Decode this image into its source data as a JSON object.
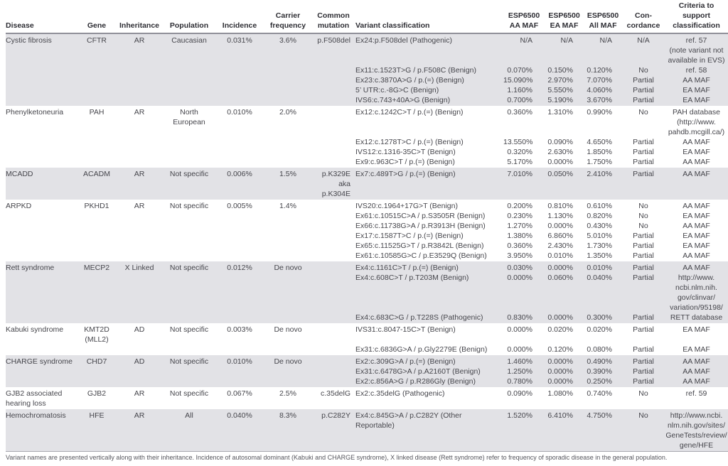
{
  "table": {
    "header": {
      "disease": "Disease",
      "gene": "Gene",
      "inheritance": "Inheritance",
      "population": "Population",
      "incidence": "Incidence",
      "carrier": "Carrier\nfrequency",
      "mutation": "Common\nmutation",
      "variant": "Variant classification",
      "aa": "ESP6500\nAA MAF",
      "ea": "ESP6500\nEA MAF",
      "all": "ESP6500\nAll MAF",
      "concordance": "Con-\ncordance",
      "criteria": "Criteria to\nsupport\nclassification"
    },
    "blocks": [
      {
        "disease": "Cystic fibrosis",
        "gene": "CFTR",
        "inheritance": "AR",
        "population": "Caucasian",
        "incidence": "0.031%",
        "carrier": "3.6%",
        "mutation": "p.F508del",
        "shaded": true,
        "variants": [
          {
            "name": "Ex24:p.F508del (Pathogenic)",
            "aa": "N/A",
            "ea": "N/A",
            "all": "N/A",
            "concordance": "N/A",
            "criteria": "ref. 57\n(note variant not\navailable in EVS)"
          },
          {
            "name": "Ex11:c.1523T>G / p.F508C (Benign)",
            "aa": "0.070%",
            "ea": "0.150%",
            "all": "0.120%",
            "concordance": "No",
            "criteria": "ref. 58"
          },
          {
            "name": "Ex23:c.3870A>G / p.(=) (Benign)",
            "aa": "15.090%",
            "ea": "2.970%",
            "all": "7.070%",
            "concordance": "Partial",
            "criteria": "AA MAF"
          },
          {
            "name": "5’ UTR:c.-8G>C (Benign)",
            "aa": "1.160%",
            "ea": "5.550%",
            "all": "4.060%",
            "concordance": "Partial",
            "criteria": "EA MAF"
          },
          {
            "name": "IVS6:c.743+40A>G (Benign)",
            "aa": "0.700%",
            "ea": "5.190%",
            "all": "3.670%",
            "concordance": "Partial",
            "criteria": "EA MAF"
          }
        ]
      },
      {
        "disease": "Phenylketoneuria",
        "gene": "PAH",
        "inheritance": "AR",
        "population": "North\nEuropean",
        "incidence": "0.010%",
        "carrier": "2.0%",
        "mutation": "",
        "shaded": false,
        "variants": [
          {
            "name": "Ex12:c.1242C>T / p.(=) (Benign)",
            "aa": "0.360%",
            "ea": "1.310%",
            "all": "0.990%",
            "concordance": "No",
            "criteria": "PAH database\n(http://www.\npahdb.mcgill.ca/)"
          },
          {
            "name": "Ex12:c.1278T>C / p.(=) (Benign)",
            "aa": "13.550%",
            "ea": "0.090%",
            "all": "4.650%",
            "concordance": "Partial",
            "criteria": "AA MAF"
          },
          {
            "name": "IVS12:c.1316-35C>T (Benign)",
            "aa": "0.320%",
            "ea": "2.630%",
            "all": "1.850%",
            "concordance": "Partial",
            "criteria": "EA MAF"
          },
          {
            "name": "Ex9:c.963C>T / p.(=) (Benign)",
            "aa": "5.170%",
            "ea": "0.000%",
            "all": "1.750%",
            "concordance": "Partial",
            "criteria": "AA MAF"
          }
        ]
      },
      {
        "disease": "MCADD",
        "gene": "ACADM",
        "inheritance": "AR",
        "population": "Not specific",
        "incidence": "0.006%",
        "carrier": "1.5%",
        "mutation": "p.K329E\naka p.K304E",
        "shaded": true,
        "variants": [
          {
            "name": "Ex7:c.489T>G / p.(=) (Benign)",
            "aa": "7.010%",
            "ea": "0.050%",
            "all": "2.410%",
            "concordance": "Partial",
            "criteria": "AA MAF"
          }
        ]
      },
      {
        "disease": "ARPKD",
        "gene": "PKHD1",
        "inheritance": "AR",
        "population": "Not specific",
        "incidence": "0.005%",
        "carrier": "1.4%",
        "mutation": "",
        "shaded": false,
        "variants": [
          {
            "name": "IVS20:c.1964+17G>T (Benign)",
            "aa": "0.200%",
            "ea": "0.810%",
            "all": "0.610%",
            "concordance": "No",
            "criteria": "AA MAF"
          },
          {
            "name": "Ex61:c.10515C>A / p.S3505R (Benign)",
            "aa": "0.230%",
            "ea": "1.130%",
            "all": "0.820%",
            "concordance": "No",
            "criteria": "EA MAF"
          },
          {
            "name": "Ex66:c.11738G>A / p.R3913H (Benign)",
            "aa": "1.270%",
            "ea": "0.000%",
            "all": "0.430%",
            "concordance": "No",
            "criteria": "AA MAF"
          },
          {
            "name": "Ex17:c.1587T>C / p.(=) (Benign)",
            "aa": "1.380%",
            "ea": "6.860%",
            "all": "5.010%",
            "concordance": "Partial",
            "criteria": "EA MAF"
          },
          {
            "name": "Ex65:c.11525G>T / p.R3842L (Benign)",
            "aa": "0.360%",
            "ea": "2.430%",
            "all": "1.730%",
            "concordance": "Partial",
            "criteria": "EA MAF"
          },
          {
            "name": "Ex61:c.10585G>C / p.E3529Q (Benign)",
            "aa": "3.950%",
            "ea": "0.010%",
            "all": "1.350%",
            "concordance": "Partial",
            "criteria": "AA MAF"
          }
        ]
      },
      {
        "disease": "Rett syndrome",
        "gene": "MECP2",
        "inheritance": "X Linked",
        "population": "Not specific",
        "incidence": "0.012%",
        "carrier": "De novo",
        "mutation": "",
        "shaded": true,
        "variants": [
          {
            "name": "Ex4:c.1161C>T / p.(=) (Benign)",
            "aa": "0.030%",
            "ea": "0.000%",
            "all": "0.010%",
            "concordance": "Partial",
            "criteria": "AA MAF"
          },
          {
            "name": "Ex4:c.608C>T / p.T203M (Benign)",
            "aa": "0.000%",
            "ea": "0.060%",
            "all": "0.040%",
            "concordance": "Partial",
            "criteria": "http://www.\nncbi.nlm.nih.\ngov/clinvar/\nvariation/95198/"
          },
          {
            "name": "Ex4:c.683C>G / p.T228S (Pathogenic)",
            "aa": "0.830%",
            "ea": "0.000%",
            "all": "0.300%",
            "concordance": "Partial",
            "criteria": "RETT database"
          }
        ]
      },
      {
        "disease": "Kabuki syndrome",
        "gene": "KMT2D\n(MLL2)",
        "inheritance": "AD",
        "population": "Not specific",
        "incidence": "0.003%",
        "carrier": "De novo",
        "mutation": "",
        "shaded": false,
        "variants": [
          {
            "name": "IVS31:c.8047-15C>T (Benign)",
            "aa": "0.000%",
            "ea": "0.020%",
            "all": "0.020%",
            "concordance": "Partial",
            "criteria": "EA MAF"
          },
          {
            "name": "Ex31:c.6836G>A / p.Gly2279E (Benign)",
            "aa": "0.000%",
            "ea": "0.120%",
            "all": "0.080%",
            "concordance": "Partial",
            "criteria": "EA MAF"
          }
        ]
      },
      {
        "disease": "CHARGE syndrome",
        "gene": "CHD7",
        "inheritance": "AD",
        "population": "Not specific",
        "incidence": "0.010%",
        "carrier": "De novo",
        "mutation": "",
        "shaded": true,
        "variants": [
          {
            "name": "Ex2:c.309G>A / p.(=) (Benign)",
            "aa": "1.460%",
            "ea": "0.000%",
            "all": "0.490%",
            "concordance": "Partial",
            "criteria": "AA MAF"
          },
          {
            "name": "Ex31:c.6478G>A / p.A2160T (Benign)",
            "aa": "1.250%",
            "ea": "0.000%",
            "all": "0.390%",
            "concordance": "Partial",
            "criteria": "AA MAF"
          },
          {
            "name": "Ex2:c.856A>G / p.R286Gly (Benign)",
            "aa": "0.780%",
            "ea": "0.000%",
            "all": "0.250%",
            "concordance": "Partial",
            "criteria": "AA MAF"
          }
        ]
      },
      {
        "disease": "GJB2 associated\nhearing loss",
        "gene": "GJB2",
        "inheritance": "AR",
        "population": "Not specific",
        "incidence": "0.067%",
        "carrier": "2.5%",
        "mutation": "c.35delG",
        "shaded": false,
        "variants": [
          {
            "name": "Ex2:c.35delG (Pathogenic)",
            "aa": "0.090%",
            "ea": "1.080%",
            "all": "0.740%",
            "concordance": "No",
            "criteria": "ref. 59"
          }
        ]
      },
      {
        "disease": "Hemochromatosis",
        "gene": "HFE",
        "inheritance": "AR",
        "population": "All",
        "incidence": "0.040%",
        "carrier": "8.3%",
        "mutation": "p.C282Y",
        "shaded": true,
        "variants": [
          {
            "name": "Ex4:c.845G>A / p.C282Y (Other\nReportable)",
            "aa": "1.520%",
            "ea": "6.410%",
            "all": "4.750%",
            "concordance": "No",
            "criteria": "http://www.ncbi.\nnlm.nih.gov/sites/\nGeneTests/review/\ngene/HFE"
          }
        ]
      }
    ]
  },
  "footnote": "Variant names are presented vertically along with their inheritance. Incidence of autosomal dominant (Kabuki and CHARGE syndrome), X linked disease (Rett syndrome) refer to frequency of sporadic disease in the general population."
}
